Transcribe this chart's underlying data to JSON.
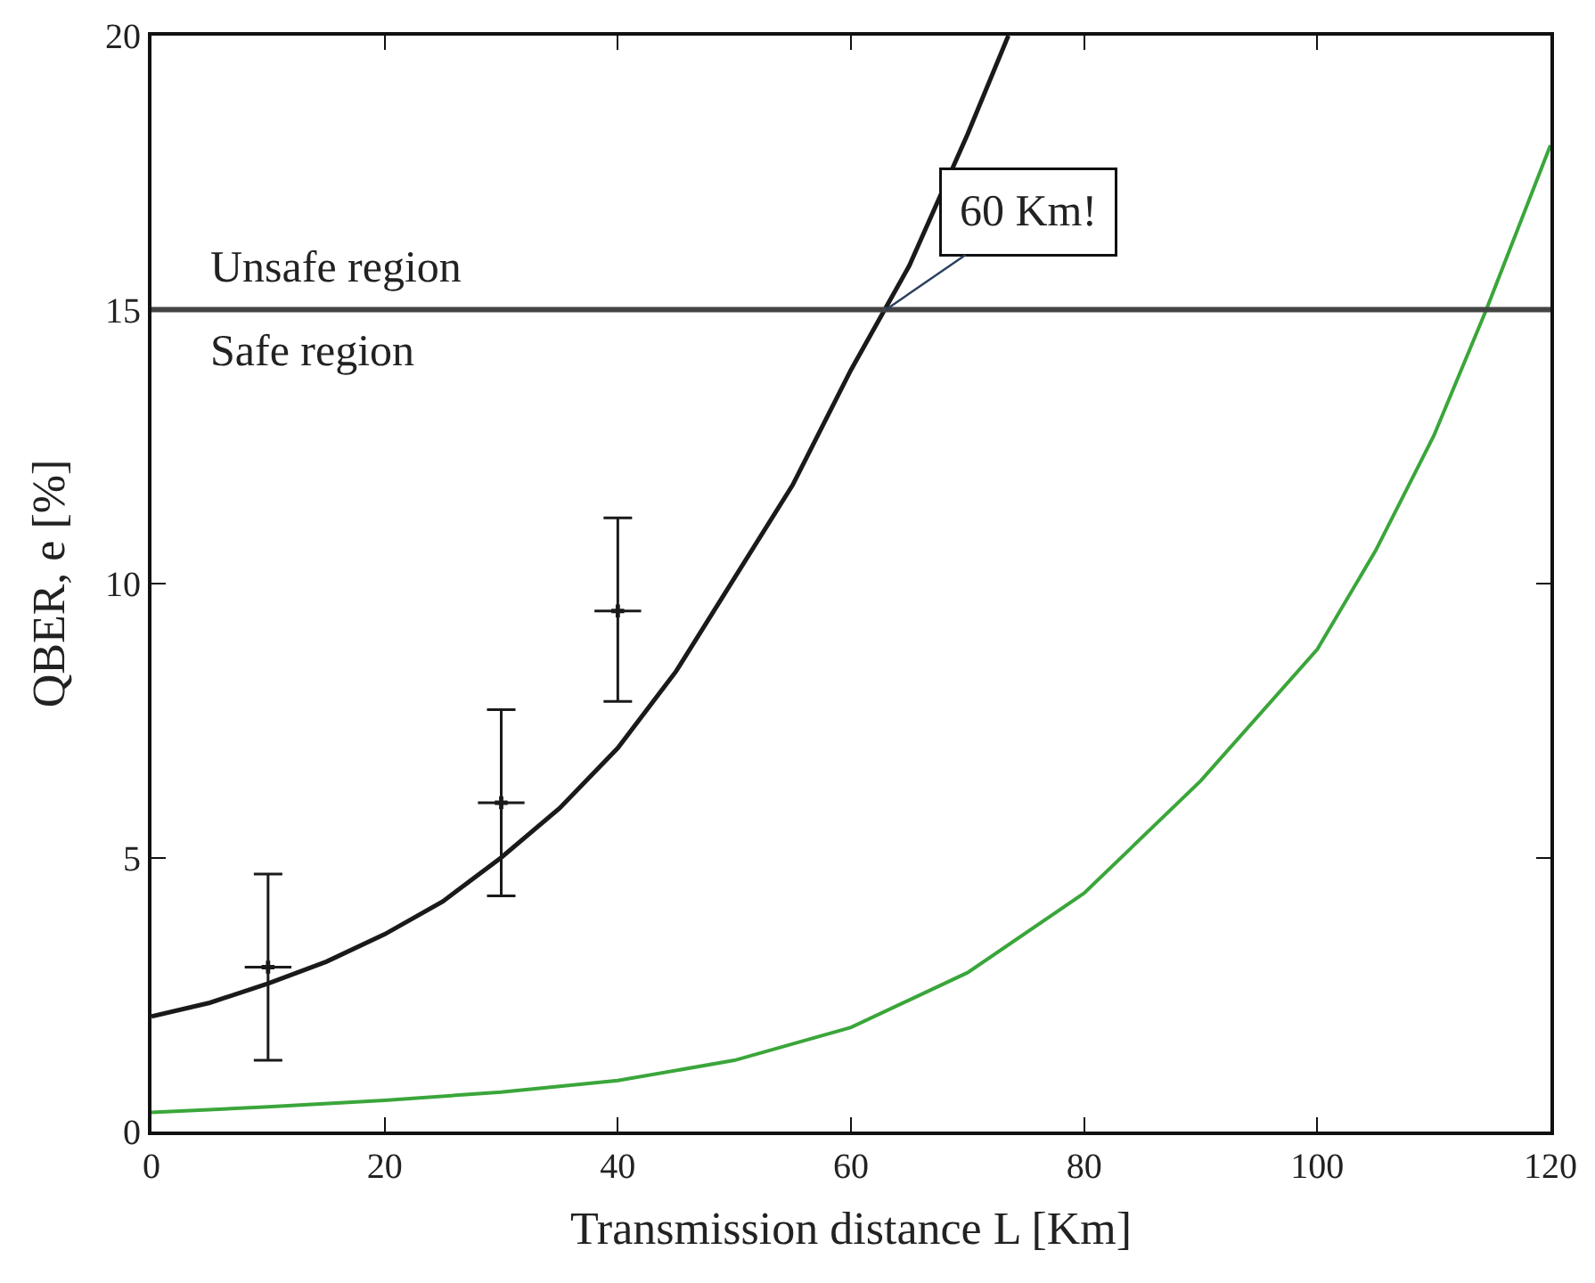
{
  "chart_data": {
    "type": "line",
    "xlabel": "Transmission distance L [Km]",
    "ylabel": "QBER, e [%]",
    "xlim": [
      0,
      120
    ],
    "xticks": [
      0,
      20,
      40,
      60,
      80,
      100,
      120
    ],
    "ylim": [
      0,
      20
    ],
    "yticks": [
      0,
      5,
      10,
      15,
      20
    ],
    "marker": "none",
    "line_style": "solid",
    "series": [
      {
        "color": "#1a1a1a",
        "x": [
          0,
          5,
          10,
          15,
          20,
          25,
          30,
          35,
          40,
          45,
          50,
          55,
          60,
          65,
          70,
          73.5
        ],
        "values": [
          2.1,
          2.35,
          2.7,
          3.1,
          3.6,
          4.2,
          5.0,
          5.9,
          7.0,
          8.4,
          10.1,
          11.8,
          13.9,
          15.8,
          18.2,
          20
        ]
      },
      {
        "color": "#3aa63a",
        "x": [
          0,
          10,
          20,
          30,
          40,
          50,
          60,
          70,
          80,
          90,
          100,
          105,
          110,
          114.5,
          120
        ],
        "values": [
          0.35,
          0.45,
          0.57,
          0.72,
          0.93,
          1.3,
          1.9,
          2.9,
          4.35,
          6.4,
          8.8,
          10.6,
          12.7,
          15,
          18.0
        ]
      },
      {
        "type": "scatter",
        "color": "#1a1a1a",
        "marker": "cross",
        "x": [
          10,
          30,
          40
        ],
        "values": [
          3.0,
          6.0,
          9.5
        ],
        "errors": [
          [
            1.3,
            4.7
          ],
          [
            4.3,
            7.7
          ],
          [
            7.85,
            11.2
          ]
        ],
        "xerrors": [
          2,
          2,
          2
        ]
      }
    ],
    "ref_lines": [
      {
        "axis": "y",
        "value": 15,
        "color": "#444444"
      }
    ],
    "annotations": [
      "Unsafe region",
      "Safe region",
      {
        "text": "60 Km!",
        "x": 63,
        "y": 15
      }
    ]
  }
}
